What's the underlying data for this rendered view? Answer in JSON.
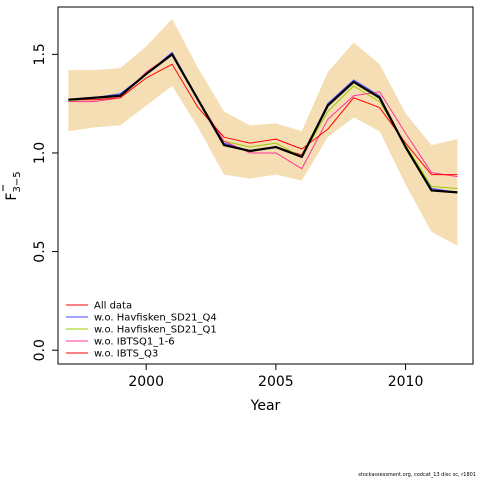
{
  "chart_data": {
    "type": "line",
    "title": "",
    "xlabel": "Year",
    "ylabel_main": "F",
    "ylabel_sub": "3−5",
    "xlim": [
      1996.6,
      2012.6
    ],
    "ylim": [
      -0.07,
      1.74
    ],
    "xticks": [
      2000,
      2005,
      2010
    ],
    "yticks": [
      0.0,
      0.5,
      1.0,
      1.5
    ],
    "ytick_labels": [
      "0.0",
      "0.5",
      "1.0",
      "1.5"
    ],
    "x": [
      1997,
      1998,
      1999,
      2000,
      2001,
      2002,
      2003,
      2004,
      2005,
      2006,
      2007,
      2008,
      2009,
      2010,
      2011,
      2012
    ],
    "band": {
      "color": "#f5deb3",
      "upper": [
        1.42,
        1.42,
        1.43,
        1.54,
        1.68,
        1.43,
        1.21,
        1.14,
        1.15,
        1.11,
        1.41,
        1.56,
        1.45,
        1.2,
        1.04,
        1.07
      ],
      "lower": [
        1.11,
        1.13,
        1.14,
        1.24,
        1.34,
        1.13,
        0.89,
        0.87,
        0.89,
        0.86,
        1.08,
        1.18,
        1.11,
        0.84,
        0.6,
        0.53
      ]
    },
    "series": [
      {
        "name": "All data",
        "color": "#ff0000",
        "width": 1,
        "values": [
          1.27,
          1.28,
          1.29,
          1.4,
          1.5,
          1.27,
          1.04,
          1.01,
          1.03,
          0.99,
          1.24,
          1.36,
          1.28,
          1.03,
          0.81,
          0.8
        ]
      },
      {
        "name": "w.o. Havfisken_SD21_Q4",
        "color": "#4444ff",
        "width": 1,
        "values": [
          1.27,
          1.28,
          1.3,
          1.4,
          1.51,
          1.27,
          1.05,
          1.01,
          1.03,
          0.98,
          1.25,
          1.37,
          1.29,
          1.03,
          0.82,
          0.8
        ]
      },
      {
        "name": "w.o. Havfisken_SD21_Q1",
        "color": "#99cc00",
        "width": 1,
        "values": [
          1.26,
          1.28,
          1.29,
          1.4,
          1.5,
          1.27,
          1.06,
          1.03,
          1.05,
          0.98,
          1.21,
          1.34,
          1.26,
          1.04,
          0.83,
          0.82
        ]
      },
      {
        "name": "w.o. IBTSQ1_1-6",
        "color": "#ff3399",
        "width": 1,
        "values": [
          1.26,
          1.26,
          1.28,
          1.41,
          1.5,
          1.27,
          1.06,
          1.0,
          1.0,
          0.92,
          1.17,
          1.29,
          1.31,
          1.1,
          0.9,
          0.88
        ]
      },
      {
        "name": "w.o. IBTS_Q3",
        "color": "#ff0000",
        "width": 1,
        "values": [
          1.27,
          1.27,
          1.28,
          1.38,
          1.45,
          1.23,
          1.08,
          1.05,
          1.07,
          1.02,
          1.12,
          1.28,
          1.23,
          1.05,
          0.89,
          0.89
        ]
      },
      {
        "name": "",
        "color": "#000000",
        "width": 2.2,
        "values": [
          1.27,
          1.28,
          1.29,
          1.4,
          1.5,
          1.27,
          1.04,
          1.01,
          1.03,
          0.98,
          1.24,
          1.36,
          1.28,
          1.03,
          0.81,
          0.8
        ]
      }
    ],
    "legend_position": "bottom-left",
    "footer": "stockassessment.org, codcat_13 disc sc, r1801"
  }
}
